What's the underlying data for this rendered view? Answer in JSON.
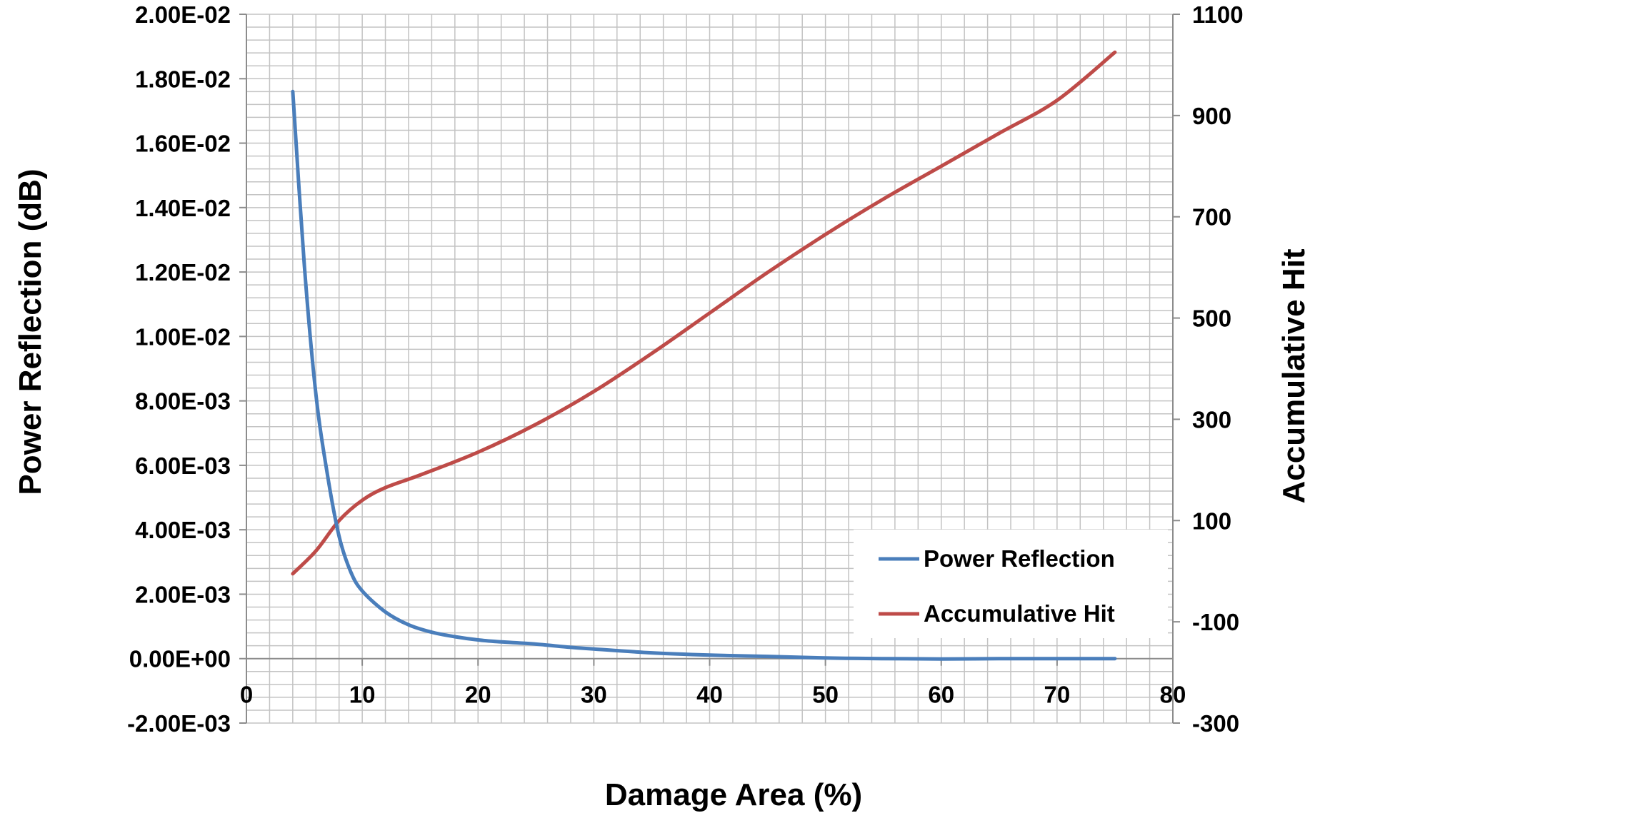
{
  "chart_data": {
    "type": "line",
    "xlabel": "Damage Area (%)",
    "ylabel_left": "Power Reflection (dB)",
    "ylabel_right": "Accumulative Hit",
    "xlim": [
      0,
      80
    ],
    "ylim_left": [
      -0.002,
      0.02
    ],
    "ylim_right": [
      -300,
      1100
    ],
    "x_ticks": [
      "0",
      "10",
      "20",
      "30",
      "40",
      "50",
      "60",
      "70",
      "80"
    ],
    "y_left_ticks": [
      "2.00E-02",
      "1.80E-02",
      "1.60E-02",
      "1.40E-02",
      "1.20E-02",
      "1.00E-02",
      "8.00E-03",
      "6.00E-03",
      "4.00E-03",
      "2.00E-03",
      "0.00E+00",
      "-2.00E-03"
    ],
    "y_right_ticks": [
      "1100",
      "900",
      "700",
      "500",
      "300",
      "100",
      "-100",
      "-300"
    ],
    "grid": true,
    "legend_position": "bottom-right",
    "series": [
      {
        "name": "Power Reflection",
        "axis": "left",
        "color": "#4a7ebb",
        "x": [
          4,
          5,
          6,
          7,
          8,
          9,
          10,
          12,
          14,
          16,
          18,
          20,
          22,
          25,
          28,
          30,
          35,
          40,
          45,
          50,
          55,
          60,
          65,
          70,
          75
        ],
        "y": [
          0.0176,
          0.0122,
          0.0082,
          0.0057,
          0.0038,
          0.0027,
          0.0021,
          0.00145,
          0.00105,
          0.00082,
          0.00068,
          0.00058,
          0.00052,
          0.00045,
          0.00035,
          0.0003,
          0.00018,
          0.00011,
          7e-05,
          2e-05,
          0.0,
          -1e-05,
          0.0,
          0.0,
          0.0
        ]
      },
      {
        "name": "Accumulative Hit",
        "axis": "right",
        "color": "#be4b48",
        "x": [
          4,
          6,
          8,
          10,
          12,
          15,
          20,
          25,
          30,
          35,
          40,
          45,
          50,
          55,
          60,
          65,
          70,
          75
        ],
        "y": [
          -5,
          40,
          100,
          140,
          165,
          190,
          235,
          290,
          355,
          430,
          510,
          590,
          665,
          735,
          800,
          865,
          930,
          1025
        ]
      }
    ]
  }
}
